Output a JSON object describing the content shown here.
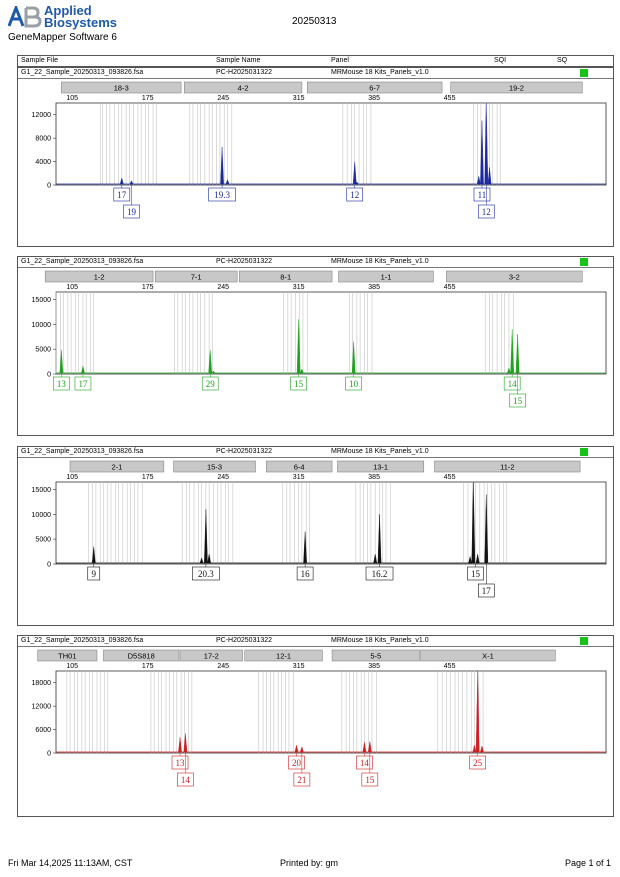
{
  "header": {
    "brand_line1": "Applied",
    "brand_line2": "Biosystems",
    "software": "GeneMapper Software 6",
    "run_date": "20250313"
  },
  "columns": {
    "sample_file": "Sample File",
    "sample_name": "Sample Name",
    "panel": "Panel",
    "sqi": "SQI",
    "sq": "SQ"
  },
  "footer": {
    "datetime": "Fri Mar 14,2025 11:13AM, CST",
    "printed_by": "Printed by: gm",
    "page": "Page 1 of 1"
  },
  "colors": {
    "status_ok": "#19c219"
  },
  "chart_data": [
    {
      "type": "electropherogram",
      "color": "#1a2a9c",
      "sample_file": "G1_22_Sample_20250313_093826.fsa",
      "sample_name": "PC-H2025031322",
      "panel": "MRMouse 18 Kits_Panels_v1.0",
      "x_ticks": [
        105,
        175,
        245,
        315,
        385,
        455
      ],
      "xlim": [
        90,
        600
      ],
      "y_ticks": [
        0,
        4000,
        8000,
        12000
      ],
      "ylim": [
        0,
        14000
      ],
      "markers": [
        {
          "label": "18-3",
          "from": 95,
          "to": 206
        },
        {
          "label": "4-2",
          "from": 209,
          "to": 318
        },
        {
          "label": "6-7",
          "from": 323,
          "to": 448
        },
        {
          "label": "19-2",
          "from": 456,
          "to": 578
        }
      ],
      "bins": [
        [
          131,
          133,
          137,
          140,
          144,
          148,
          151,
          155,
          158,
          162,
          166,
          169,
          173,
          176,
          180,
          183
        ],
        [
          214,
          217,
          221,
          224,
          228,
          232,
          235,
          239,
          242,
          246,
          249,
          253
        ],
        [
          356,
          360,
          364,
          367,
          371,
          375,
          378,
          382
        ],
        [
          477,
          481,
          484,
          488,
          492,
          495,
          499,
          502
        ]
      ],
      "peaks": [
        {
          "x": 151,
          "h": 1200
        },
        {
          "x": 160,
          "h": 700
        },
        {
          "x": 244,
          "h": 6500
        },
        {
          "x": 249,
          "h": 900
        },
        {
          "x": 367,
          "h": 4000
        },
        {
          "x": 369,
          "h": 500
        },
        {
          "x": 482,
          "h": 1500
        },
        {
          "x": 485,
          "h": 11000
        },
        {
          "x": 489,
          "h": 14000
        },
        {
          "x": 492,
          "h": 3000
        }
      ],
      "allele_calls": [
        {
          "label": "17",
          "x": 151,
          "row": 0
        },
        {
          "label": "19",
          "x": 160,
          "row": 1
        },
        {
          "label": "19.3",
          "x": 244,
          "row": 0
        },
        {
          "label": "12",
          "x": 367,
          "row": 0
        },
        {
          "label": "11",
          "x": 485,
          "row": 0
        },
        {
          "label": "12",
          "x": 489,
          "row": 1
        }
      ]
    },
    {
      "type": "electropherogram",
      "color": "#1fa31f",
      "sample_file": "G1_22_Sample_20250313_093826.fsa",
      "sample_name": "PC-H2025031322",
      "panel": "MRMouse 18 Kits_Panels_v1.0",
      "x_ticks": [
        105,
        175,
        245,
        315,
        385,
        455
      ],
      "xlim": [
        90,
        600
      ],
      "y_ticks": [
        0,
        5000,
        10000,
        15000
      ],
      "ylim": [
        0,
        16500
      ],
      "markers": [
        {
          "label": "1-2",
          "from": 80,
          "to": 180
        },
        {
          "label": "7-1",
          "from": 182,
          "to": 258
        },
        {
          "label": "8-1",
          "from": 260,
          "to": 346
        },
        {
          "label": "1-1",
          "from": 352,
          "to": 440
        },
        {
          "label": "3-2",
          "from": 452,
          "to": 578
        }
      ],
      "bins": [
        [
          90,
          94,
          97,
          101,
          104,
          108,
          111,
          115,
          118,
          122,
          125
        ],
        [
          200,
          203,
          207,
          210,
          214,
          217,
          221,
          224,
          228,
          232,
          235
        ],
        [
          301,
          305,
          308,
          312,
          316,
          319,
          323
        ],
        [
          362,
          365,
          369,
          372,
          376,
          379,
          383
        ],
        [
          488,
          492,
          495,
          499,
          503,
          506,
          510,
          514
        ]
      ],
      "peaks": [
        {
          "x": 95,
          "h": 4800
        },
        {
          "x": 115,
          "h": 1600
        },
        {
          "x": 233,
          "h": 4800
        },
        {
          "x": 236,
          "h": 600
        },
        {
          "x": 315,
          "h": 11000
        },
        {
          "x": 318,
          "h": 1000
        },
        {
          "x": 366,
          "h": 6500
        },
        {
          "x": 513,
          "h": 9000
        },
        {
          "x": 518,
          "h": 8000
        },
        {
          "x": 510,
          "h": 1200
        }
      ],
      "allele_calls": [
        {
          "label": "13",
          "x": 95,
          "row": 0
        },
        {
          "label": "17",
          "x": 115,
          "row": 0
        },
        {
          "label": "29",
          "x": 233,
          "row": 0
        },
        {
          "label": "15",
          "x": 315,
          "row": 0
        },
        {
          "label": "10",
          "x": 366,
          "row": 0
        },
        {
          "label": "14",
          "x": 513,
          "row": 0
        },
        {
          "label": "15",
          "x": 518,
          "row": 1
        }
      ]
    },
    {
      "type": "electropherogram",
      "color": "#111111",
      "sample_file": "G1_22_Sample_20250313_093826.fsa",
      "sample_name": "PC-H2025031322",
      "panel": "MRMouse 18 Kits_Panels_v1.0",
      "x_ticks": [
        105,
        175,
        245,
        315,
        385,
        455
      ],
      "xlim": [
        90,
        600
      ],
      "y_ticks": [
        0,
        5000,
        10000,
        15000
      ],
      "ylim": [
        0,
        16500
      ],
      "markers": [
        {
          "label": "2-1",
          "from": 103,
          "to": 190
        },
        {
          "label": "15-3",
          "from": 199,
          "to": 275
        },
        {
          "label": "6-4",
          "from": 285,
          "to": 346
        },
        {
          "label": "13-1",
          "from": 351,
          "to": 431
        },
        {
          "label": "11-2",
          "from": 441,
          "to": 576
        }
      ],
      "bins": [
        [
          120,
          124,
          127,
          131,
          134,
          138,
          141,
          145,
          148,
          152,
          156,
          159,
          163,
          166,
          170
        ],
        [
          207,
          211,
          214,
          218,
          222,
          225,
          229,
          232,
          236,
          240,
          243,
          247,
          250,
          254
        ],
        [
          300,
          304,
          307,
          311,
          315,
          318,
          322,
          325
        ],
        [
          368,
          372,
          375,
          379,
          382,
          386,
          390,
          393,
          396,
          400
        ],
        [
          468,
          472,
          476,
          479,
          483,
          487,
          490,
          494,
          497,
          501,
          505,
          508
        ]
      ],
      "peaks": [
        {
          "x": 125,
          "h": 3500
        },
        {
          "x": 225,
          "h": 1200
        },
        {
          "x": 229,
          "h": 11000
        },
        {
          "x": 232,
          "h": 2000
        },
        {
          "x": 321,
          "h": 6500
        },
        {
          "x": 386,
          "h": 2000
        },
        {
          "x": 390,
          "h": 10000
        },
        {
          "x": 474,
          "h": 1500
        },
        {
          "x": 477,
          "h": 16500
        },
        {
          "x": 481,
          "h": 2000
        },
        {
          "x": 489,
          "h": 14000
        }
      ],
      "allele_calls": [
        {
          "label": "9",
          "x": 125,
          "row": 0
        },
        {
          "label": "20.3",
          "x": 229,
          "row": 0
        },
        {
          "label": "16",
          "x": 321,
          "row": 0
        },
        {
          "label": "16.2",
          "x": 390,
          "row": 0
        },
        {
          "label": "15",
          "x": 479,
          "row": 0
        },
        {
          "label": "17",
          "x": 489,
          "row": 1
        }
      ]
    },
    {
      "type": "electropherogram",
      "color": "#cc1f1f",
      "sample_file": "G1_22_Sample_20250313_093826.fsa",
      "sample_name": "PC-H2025031322",
      "panel": "MRMouse 18 Kits_Panels_v1.0",
      "x_ticks": [
        105,
        175,
        245,
        315,
        385,
        455
      ],
      "xlim": [
        90,
        600
      ],
      "y_ticks": [
        0,
        6000,
        12000,
        18000
      ],
      "ylim": [
        0,
        21000
      ],
      "markers": [
        {
          "label": "TH01",
          "from": 73,
          "to": 128
        },
        {
          "label": "D5S818",
          "from": 134,
          "to": 204
        },
        {
          "label": "17-2",
          "from": 205,
          "to": 263
        },
        {
          "label": "12-1",
          "from": 265,
          "to": 337
        },
        {
          "label": "5-5",
          "from": 346,
          "to": 427
        },
        {
          "label": "X-1",
          "from": 428,
          "to": 553
        }
      ],
      "bins": [
        [
          100,
          103,
          107,
          110,
          114,
          117,
          121,
          124,
          128,
          131,
          135,
          138
        ],
        [
          178,
          181,
          185,
          188,
          192,
          195,
          199,
          202,
          206,
          209,
          213,
          216
        ],
        [
          278,
          282,
          285,
          289,
          292,
          296,
          299,
          303,
          306,
          310
        ],
        [
          355,
          359,
          362,
          366,
          369,
          373,
          376,
          380,
          383,
          387
        ],
        [
          444,
          448,
          452,
          456,
          460,
          463,
          467,
          471,
          475,
          478,
          482,
          486
        ]
      ],
      "peaks": [
        {
          "x": 205,
          "h": 4000
        },
        {
          "x": 210,
          "h": 5000
        },
        {
          "x": 313,
          "h": 2000
        },
        {
          "x": 318,
          "h": 1600
        },
        {
          "x": 376,
          "h": 2800
        },
        {
          "x": 381,
          "h": 3000
        },
        {
          "x": 478,
          "h": 2000
        },
        {
          "x": 481,
          "h": 21000
        },
        {
          "x": 485,
          "h": 1800
        }
      ],
      "allele_calls": [
        {
          "label": "13",
          "x": 205,
          "row": 0
        },
        {
          "label": "14",
          "x": 210,
          "row": 1
        },
        {
          "label": "20",
          "x": 313,
          "row": 0
        },
        {
          "label": "21",
          "x": 318,
          "row": 1
        },
        {
          "label": "14",
          "x": 376,
          "row": 0
        },
        {
          "label": "15",
          "x": 381,
          "row": 1
        },
        {
          "label": "25",
          "x": 481,
          "row": 0
        }
      ]
    }
  ]
}
